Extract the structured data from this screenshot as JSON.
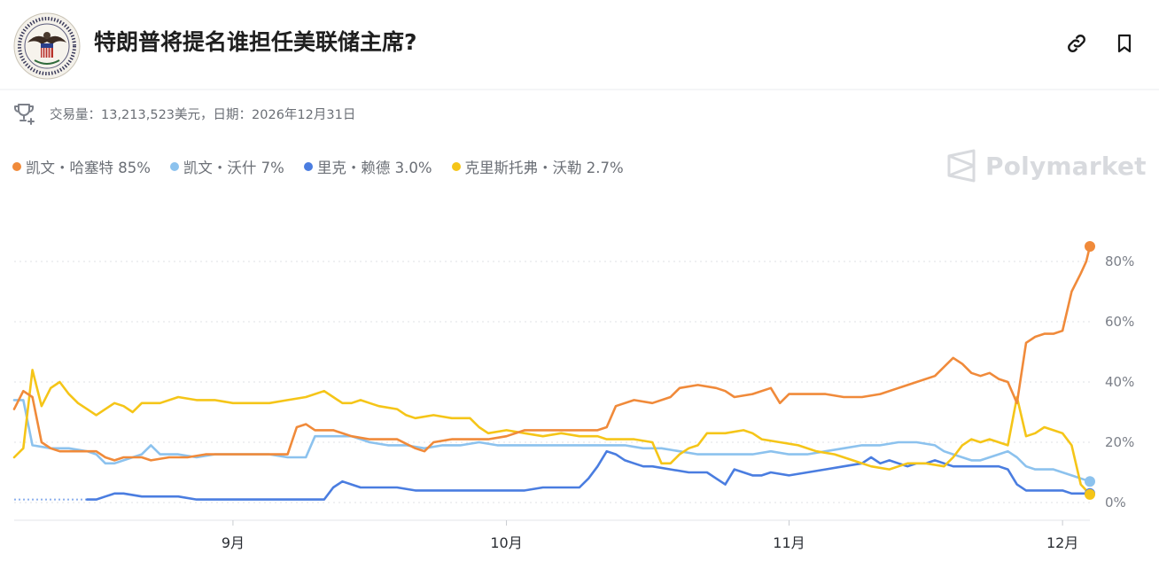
{
  "header": {
    "title": "特朗普将提名谁担任美联储主席?",
    "link_icon": "link-icon",
    "bookmark_icon": "bookmark-icon",
    "logo_icon": "federal-reserve-seal-icon"
  },
  "meta": {
    "icon": "trophy-icon",
    "text": "交易量：13,213,523美元，日期：2026年12月31日"
  },
  "legend": [
    {
      "label": "凯文・哈塞特 85%",
      "color": "#f08a3a"
    },
    {
      "label": "凯文・沃什 7%",
      "color": "#8cc2ee"
    },
    {
      "label": "里克・赖德 3.0%",
      "color": "#4a7de0"
    },
    {
      "label": "克里斯托弗・沃勒 2.7%",
      "color": "#f5c518"
    }
  ],
  "watermark": {
    "text": "Polymarket",
    "icon": "polymarket-logo-icon"
  },
  "chart_data": {
    "type": "line",
    "x_tick_labels": [
      "9月",
      "10月",
      "11月",
      "12月"
    ],
    "y_tick_labels": [
      "80%",
      "60%",
      "40%",
      "20%",
      "0%"
    ],
    "y_ticks": [
      80,
      60,
      40,
      20,
      0
    ],
    "ylim": [
      0,
      80
    ],
    "grid": true,
    "x_range_days": [
      0,
      118
    ],
    "x_tick_days": [
      24,
      54,
      85,
      115
    ],
    "series": [
      {
        "name": "凯文・哈塞特",
        "color": "#f08a3a",
        "points": [
          [
            0,
            31
          ],
          [
            1,
            37
          ],
          [
            2,
            35
          ],
          [
            3,
            20
          ],
          [
            4,
            18
          ],
          [
            5,
            17
          ],
          [
            7,
            17
          ],
          [
            9,
            17
          ],
          [
            10,
            15
          ],
          [
            11,
            14
          ],
          [
            12,
            15
          ],
          [
            14,
            15
          ],
          [
            15,
            14
          ],
          [
            17,
            15
          ],
          [
            19,
            15
          ],
          [
            21,
            16
          ],
          [
            23,
            16
          ],
          [
            26,
            16
          ],
          [
            29,
            16
          ],
          [
            30,
            16
          ],
          [
            31,
            25
          ],
          [
            32,
            26
          ],
          [
            33,
            24
          ],
          [
            35,
            24
          ],
          [
            37,
            22
          ],
          [
            39,
            21
          ],
          [
            42,
            21
          ],
          [
            44,
            18
          ],
          [
            45,
            17
          ],
          [
            46,
            20
          ],
          [
            48,
            21
          ],
          [
            50,
            21
          ],
          [
            52,
            21
          ],
          [
            54,
            22
          ],
          [
            56,
            24
          ],
          [
            58,
            24
          ],
          [
            60,
            24
          ],
          [
            62,
            24
          ],
          [
            64,
            24
          ],
          [
            65,
            25
          ],
          [
            66,
            32
          ],
          [
            68,
            34
          ],
          [
            70,
            33
          ],
          [
            72,
            35
          ],
          [
            73,
            38
          ],
          [
            75,
            39
          ],
          [
            77,
            38
          ],
          [
            78,
            37
          ],
          [
            79,
            35
          ],
          [
            81,
            36
          ],
          [
            83,
            38
          ],
          [
            84,
            33
          ],
          [
            85,
            36
          ],
          [
            87,
            36
          ],
          [
            89,
            36
          ],
          [
            91,
            35
          ],
          [
            93,
            35
          ],
          [
            95,
            36
          ],
          [
            97,
            38
          ],
          [
            99,
            40
          ],
          [
            101,
            42
          ],
          [
            102,
            45
          ],
          [
            103,
            48
          ],
          [
            104,
            46
          ],
          [
            105,
            43
          ],
          [
            106,
            42
          ],
          [
            107,
            43
          ],
          [
            108,
            41
          ],
          [
            109,
            40
          ],
          [
            110,
            33
          ],
          [
            111,
            53
          ],
          [
            112,
            55
          ],
          [
            113,
            56
          ],
          [
            114,
            56
          ],
          [
            115,
            57
          ],
          [
            116,
            70
          ],
          [
            117,
            76
          ],
          [
            117.6,
            80
          ],
          [
            118,
            85
          ]
        ]
      },
      {
        "name": "凯文・沃什",
        "color": "#8cc2ee",
        "points": [
          [
            0,
            34
          ],
          [
            1,
            34
          ],
          [
            2,
            19
          ],
          [
            4,
            18
          ],
          [
            6,
            18
          ],
          [
            8,
            17
          ],
          [
            9,
            16
          ],
          [
            10,
            13
          ],
          [
            11,
            13
          ],
          [
            13,
            15
          ],
          [
            14,
            16
          ],
          [
            15,
            19
          ],
          [
            16,
            16
          ],
          [
            18,
            16
          ],
          [
            20,
            15
          ],
          [
            22,
            16
          ],
          [
            24,
            16
          ],
          [
            26,
            16
          ],
          [
            28,
            16
          ],
          [
            30,
            15
          ],
          [
            32,
            15
          ],
          [
            33,
            22
          ],
          [
            35,
            22
          ],
          [
            37,
            22
          ],
          [
            39,
            20
          ],
          [
            41,
            19
          ],
          [
            43,
            19
          ],
          [
            45,
            18
          ],
          [
            47,
            19
          ],
          [
            49,
            19
          ],
          [
            51,
            20
          ],
          [
            53,
            19
          ],
          [
            55,
            19
          ],
          [
            57,
            19
          ],
          [
            59,
            19
          ],
          [
            61,
            19
          ],
          [
            63,
            19
          ],
          [
            65,
            19
          ],
          [
            67,
            19
          ],
          [
            69,
            18
          ],
          [
            71,
            18
          ],
          [
            73,
            17
          ],
          [
            75,
            16
          ],
          [
            77,
            16
          ],
          [
            79,
            16
          ],
          [
            81,
            16
          ],
          [
            83,
            17
          ],
          [
            85,
            16
          ],
          [
            87,
            16
          ],
          [
            89,
            17
          ],
          [
            91,
            18
          ],
          [
            93,
            19
          ],
          [
            95,
            19
          ],
          [
            97,
            20
          ],
          [
            99,
            20
          ],
          [
            101,
            19
          ],
          [
            102,
            17
          ],
          [
            103,
            16
          ],
          [
            104,
            15
          ],
          [
            105,
            14
          ],
          [
            106,
            14
          ],
          [
            107,
            15
          ],
          [
            108,
            16
          ],
          [
            109,
            17
          ],
          [
            110,
            15
          ],
          [
            111,
            12
          ],
          [
            112,
            11
          ],
          [
            113,
            11
          ],
          [
            114,
            11
          ],
          [
            115,
            10
          ],
          [
            116,
            9
          ],
          [
            117,
            8
          ],
          [
            118,
            7
          ]
        ]
      },
      {
        "name": "里克・赖德",
        "color": "#4a7de0",
        "points": [
          [
            8,
            1
          ],
          [
            9,
            1
          ],
          [
            10,
            2
          ],
          [
            11,
            3
          ],
          [
            12,
            3
          ],
          [
            14,
            2
          ],
          [
            16,
            2
          ],
          [
            18,
            2
          ],
          [
            20,
            1
          ],
          [
            22,
            1
          ],
          [
            24,
            1
          ],
          [
            26,
            1
          ],
          [
            28,
            1
          ],
          [
            30,
            1
          ],
          [
            32,
            1
          ],
          [
            34,
            1
          ],
          [
            35,
            5
          ],
          [
            36,
            7
          ],
          [
            37,
            6
          ],
          [
            38,
            5
          ],
          [
            40,
            5
          ],
          [
            42,
            5
          ],
          [
            44,
            4
          ],
          [
            46,
            4
          ],
          [
            48,
            4
          ],
          [
            50,
            4
          ],
          [
            52,
            4
          ],
          [
            54,
            4
          ],
          [
            56,
            4
          ],
          [
            58,
            5
          ],
          [
            60,
            5
          ],
          [
            62,
            5
          ],
          [
            63,
            8
          ],
          [
            64,
            12
          ],
          [
            65,
            17
          ],
          [
            66,
            16
          ],
          [
            67,
            14
          ],
          [
            68,
            13
          ],
          [
            69,
            12
          ],
          [
            70,
            12
          ],
          [
            72,
            11
          ],
          [
            74,
            10
          ],
          [
            76,
            10
          ],
          [
            77,
            8
          ],
          [
            78,
            6
          ],
          [
            79,
            11
          ],
          [
            80,
            10
          ],
          [
            81,
            9
          ],
          [
            82,
            9
          ],
          [
            83,
            10
          ],
          [
            85,
            9
          ],
          [
            87,
            10
          ],
          [
            89,
            11
          ],
          [
            91,
            12
          ],
          [
            93,
            13
          ],
          [
            94,
            15
          ],
          [
            95,
            13
          ],
          [
            96,
            14
          ],
          [
            97,
            13
          ],
          [
            98,
            12
          ],
          [
            99,
            13
          ],
          [
            100,
            13
          ],
          [
            101,
            14
          ],
          [
            102,
            13
          ],
          [
            103,
            12
          ],
          [
            105,
            12
          ],
          [
            107,
            12
          ],
          [
            108,
            12
          ],
          [
            109,
            11
          ],
          [
            110,
            6
          ],
          [
            111,
            4
          ],
          [
            112,
            4
          ],
          [
            113,
            4
          ],
          [
            114,
            4
          ],
          [
            115,
            4
          ],
          [
            116,
            3
          ],
          [
            117,
            3
          ],
          [
            118,
            3
          ]
        ]
      },
      {
        "name": "克里斯托弗・沃勒",
        "color": "#f5c518",
        "points": [
          [
            0,
            15
          ],
          [
            1,
            18
          ],
          [
            2,
            44
          ],
          [
            3,
            32
          ],
          [
            4,
            38
          ],
          [
            5,
            40
          ],
          [
            6,
            36
          ],
          [
            7,
            33
          ],
          [
            8,
            31
          ],
          [
            9,
            29
          ],
          [
            10,
            31
          ],
          [
            11,
            33
          ],
          [
            12,
            32
          ],
          [
            13,
            30
          ],
          [
            14,
            33
          ],
          [
            16,
            33
          ],
          [
            18,
            35
          ],
          [
            20,
            34
          ],
          [
            22,
            34
          ],
          [
            24,
            33
          ],
          [
            26,
            33
          ],
          [
            28,
            33
          ],
          [
            30,
            34
          ],
          [
            32,
            35
          ],
          [
            34,
            37
          ],
          [
            35,
            35
          ],
          [
            36,
            33
          ],
          [
            37,
            33
          ],
          [
            38,
            34
          ],
          [
            39,
            33
          ],
          [
            40,
            32
          ],
          [
            42,
            31
          ],
          [
            43,
            29
          ],
          [
            44,
            28
          ],
          [
            46,
            29
          ],
          [
            48,
            28
          ],
          [
            50,
            28
          ],
          [
            51,
            25
          ],
          [
            52,
            23
          ],
          [
            54,
            24
          ],
          [
            56,
            23
          ],
          [
            58,
            22
          ],
          [
            60,
            23
          ],
          [
            62,
            22
          ],
          [
            64,
            22
          ],
          [
            65,
            21
          ],
          [
            66,
            21
          ],
          [
            68,
            21
          ],
          [
            70,
            20
          ],
          [
            71,
            13
          ],
          [
            72,
            13
          ],
          [
            73,
            16
          ],
          [
            74,
            18
          ],
          [
            75,
            19
          ],
          [
            76,
            23
          ],
          [
            78,
            23
          ],
          [
            80,
            24
          ],
          [
            81,
            23
          ],
          [
            82,
            21
          ],
          [
            84,
            20
          ],
          [
            86,
            19
          ],
          [
            88,
            17
          ],
          [
            90,
            16
          ],
          [
            92,
            14
          ],
          [
            94,
            12
          ],
          [
            96,
            11
          ],
          [
            98,
            13
          ],
          [
            100,
            13
          ],
          [
            102,
            12
          ],
          [
            103,
            15
          ],
          [
            104,
            19
          ],
          [
            105,
            21
          ],
          [
            106,
            20
          ],
          [
            107,
            21
          ],
          [
            108,
            20
          ],
          [
            109,
            19
          ],
          [
            110,
            35
          ],
          [
            111,
            22
          ],
          [
            112,
            23
          ],
          [
            113,
            25
          ],
          [
            114,
            24
          ],
          [
            115,
            23
          ],
          [
            116,
            19
          ],
          [
            117,
            6
          ],
          [
            118,
            2.7
          ]
        ]
      }
    ]
  }
}
